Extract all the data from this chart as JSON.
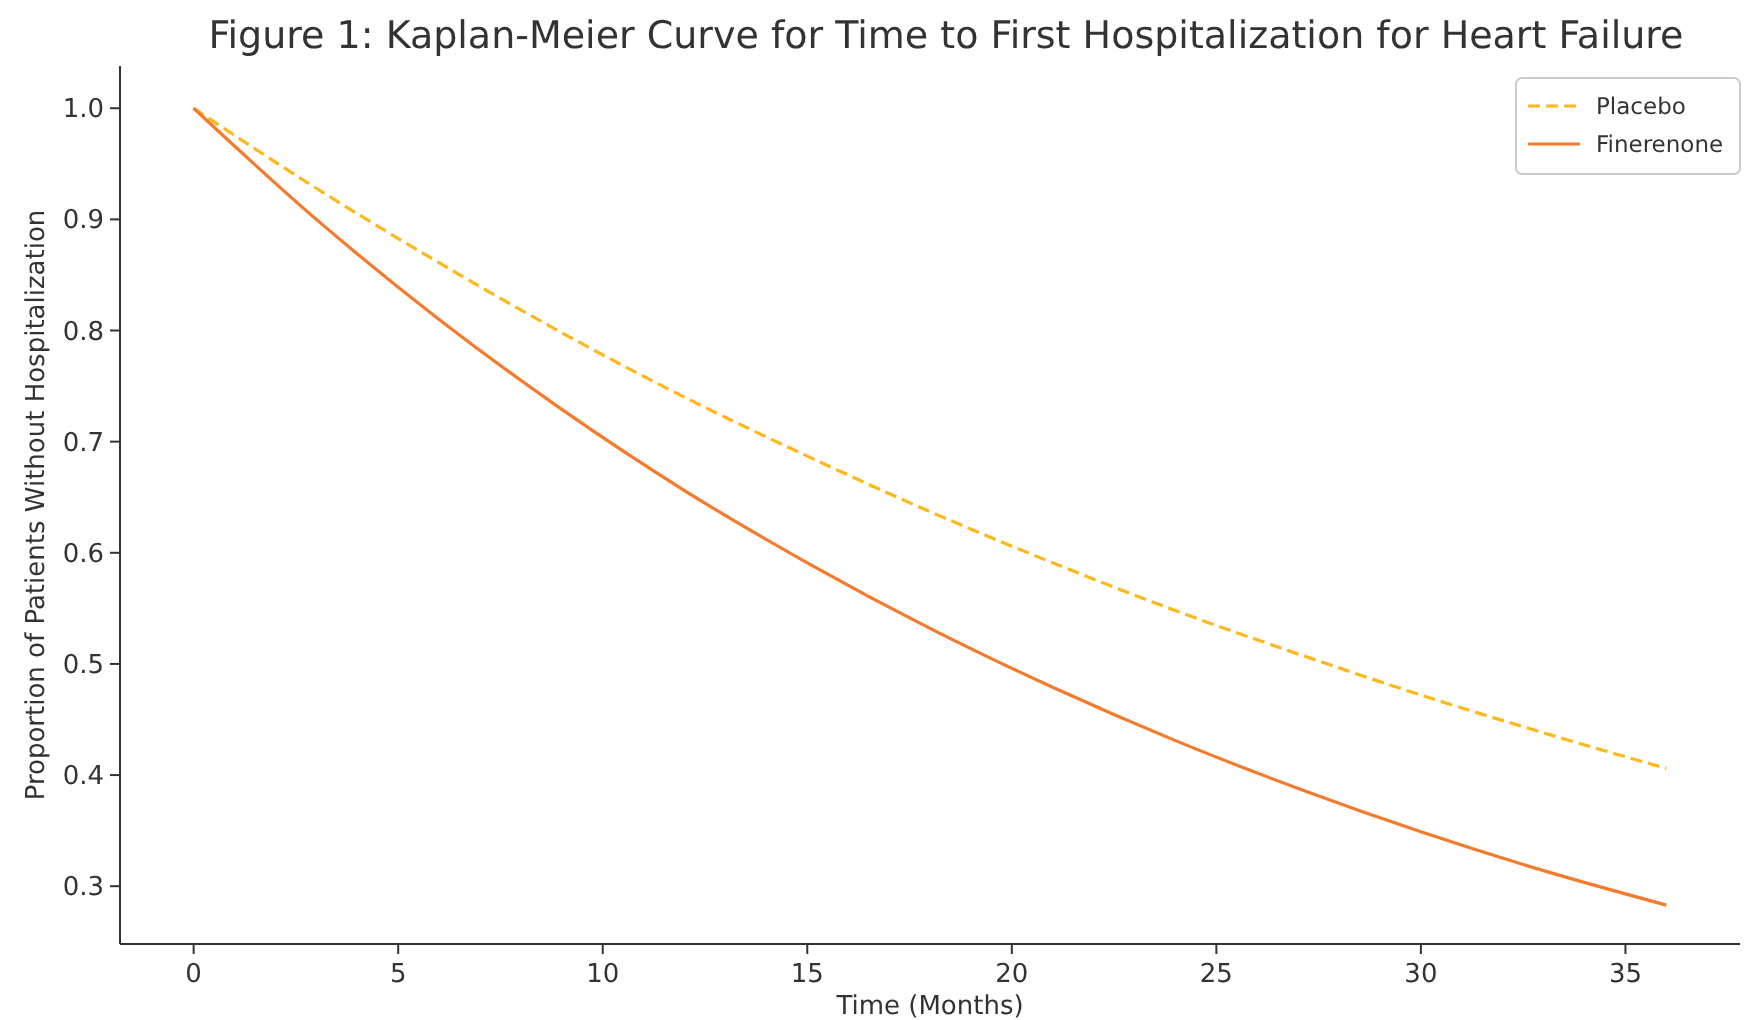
{
  "chart_data": {
    "type": "line",
    "title": "Figure 1: Kaplan-Meier Curve for Time to First Hospitalization for Heart Failure",
    "xlabel": "Time (Months)",
    "ylabel": "Proportion of Patients Without Hospitalization",
    "x": [
      0,
      3,
      6,
      9,
      12,
      15,
      18,
      21,
      24,
      27,
      30,
      33,
      36
    ],
    "series": [
      {
        "name": "Placebo",
        "color": "#ffb81c",
        "line_style": "dashed",
        "values": [
          1.0,
          0.928,
          0.861,
          0.798,
          0.74,
          0.687,
          0.637,
          0.591,
          0.548,
          0.509,
          0.472,
          0.438,
          0.406
        ]
      },
      {
        "name": "Finerenone",
        "color": "#f47a2c",
        "line_style": "solid",
        "values": [
          1.0,
          0.9,
          0.81,
          0.729,
          0.656,
          0.591,
          0.532,
          0.479,
          0.431,
          0.388,
          0.349,
          0.314,
          0.283
        ]
      }
    ],
    "xlim": [
      -1.8,
      37.8
    ],
    "xticks": [
      0,
      5,
      10,
      15,
      20,
      25,
      30,
      35
    ],
    "ylim": [
      0.248,
      1.038
    ],
    "yticks": [
      {
        "value": 0.3,
        "label": "0.3"
      },
      {
        "value": 0.4,
        "label": "0.4"
      },
      {
        "value": 0.5,
        "label": "0.5"
      },
      {
        "value": 0.6,
        "label": "0.6"
      },
      {
        "value": 0.7,
        "label": "0.7"
      },
      {
        "value": 0.8,
        "label": "0.8"
      },
      {
        "value": 0.9,
        "label": "0.9"
      },
      {
        "value": 1.0,
        "label": "1.0"
      }
    ],
    "grid": false,
    "legend": "top right",
    "marker": "none"
  }
}
